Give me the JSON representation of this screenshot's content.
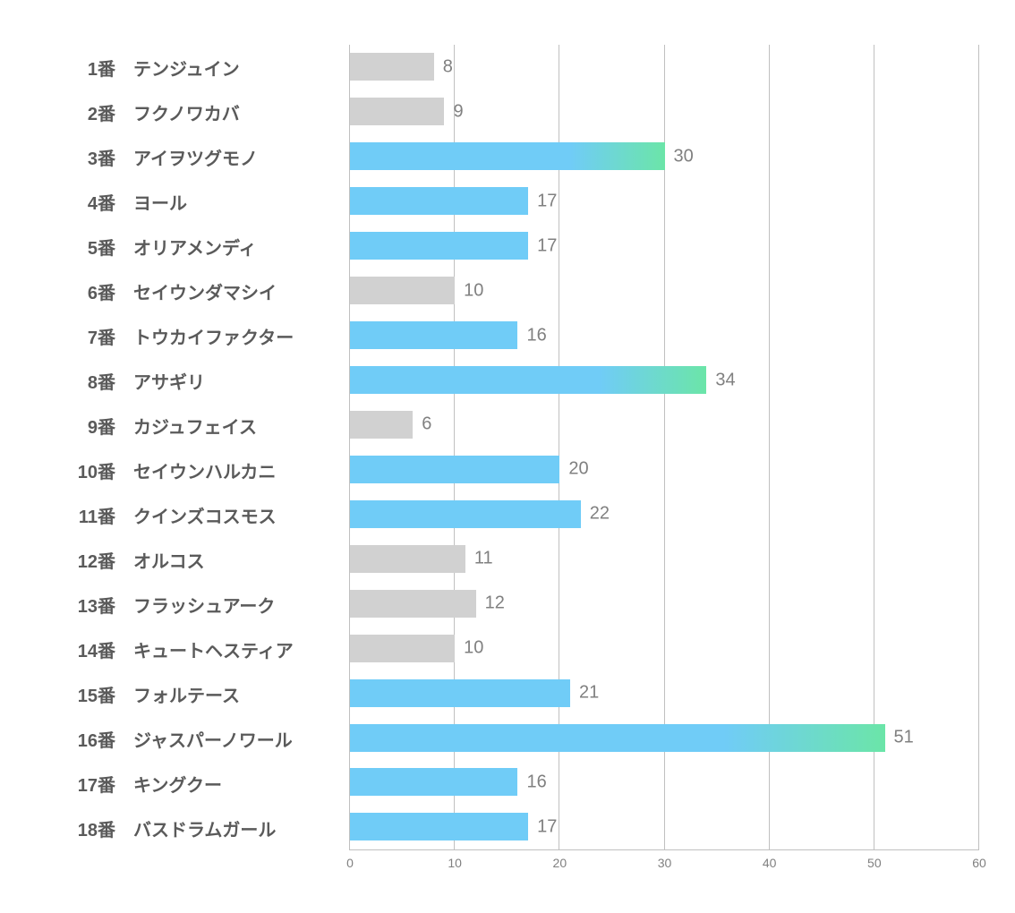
{
  "chart": {
    "type": "bar",
    "orientation": "horizontal",
    "xlim": [
      0,
      60
    ],
    "xtick_step": 10,
    "xticks": [
      0,
      10,
      20,
      30,
      40,
      50,
      60
    ],
    "background_color": "#ffffff",
    "grid_color": "#c0c0c0",
    "label_fontsize": 20,
    "label_color": "#5a5a5a",
    "value_fontsize": 20,
    "value_color": "#808080",
    "tick_fontsize": 14,
    "tick_color": "#808080",
    "bar_colors": {
      "grey": "#d1d1d1",
      "blue": "#70ccf7",
      "gradient_start": "#70ccf7",
      "gradient_end": "#6be5a8"
    },
    "items": [
      {
        "number": "1番",
        "name": "テンジュイン",
        "value": 8,
        "style": "grey"
      },
      {
        "number": "2番",
        "name": "フクノワカバ",
        "value": 9,
        "style": "grey"
      },
      {
        "number": "3番",
        "name": "アイヲツグモノ",
        "value": 30,
        "style": "gradient"
      },
      {
        "number": "4番",
        "name": "ヨール",
        "value": 17,
        "style": "blue"
      },
      {
        "number": "5番",
        "name": "オリアメンディ",
        "value": 17,
        "style": "blue"
      },
      {
        "number": "6番",
        "name": "セイウンダマシイ",
        "value": 10,
        "style": "grey"
      },
      {
        "number": "7番",
        "name": "トウカイファクター",
        "value": 16,
        "style": "blue"
      },
      {
        "number": "8番",
        "name": "アサギリ",
        "value": 34,
        "style": "gradient"
      },
      {
        "number": "9番",
        "name": "カジュフェイス",
        "value": 6,
        "style": "grey"
      },
      {
        "number": "10番",
        "name": "セイウンハルカニ",
        "value": 20,
        "style": "blue"
      },
      {
        "number": "11番",
        "name": "クインズコスモス",
        "value": 22,
        "style": "blue"
      },
      {
        "number": "12番",
        "name": "オルコス",
        "value": 11,
        "style": "grey"
      },
      {
        "number": "13番",
        "name": "フラッシュアーク",
        "value": 12,
        "style": "grey"
      },
      {
        "number": "14番",
        "name": "キュートヘスティア",
        "value": 10,
        "style": "grey"
      },
      {
        "number": "15番",
        "name": "フォルテース",
        "value": 21,
        "style": "blue"
      },
      {
        "number": "16番",
        "name": "ジャスパーノワール",
        "value": 51,
        "style": "gradient"
      },
      {
        "number": "17番",
        "name": "キングクー",
        "value": 16,
        "style": "blue"
      },
      {
        "number": "18番",
        "name": "バスドラムガール",
        "value": 17,
        "style": "blue"
      }
    ]
  }
}
